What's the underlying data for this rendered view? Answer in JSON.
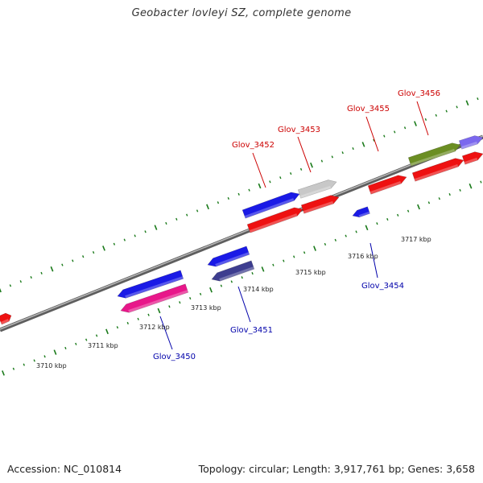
{
  "title": "Geobacter lovleyi SZ, complete genome",
  "footer": {
    "accession": "Accession: NC_010814",
    "summary": "Topology: circular; Length: 3,917,761 bp; Genes: 3,658"
  },
  "colors": {
    "forward_label": "#cc0000",
    "reverse_label": "#0000aa",
    "tick": "#1a7a1a",
    "backbone": "#8a8a8a"
  },
  "kbp_labels": [
    {
      "id": "kbp-3710",
      "text": "3710 kbp"
    },
    {
      "id": "kbp-3711",
      "text": "3711 kbp"
    },
    {
      "id": "kbp-3712",
      "text": "3712 kbp"
    },
    {
      "id": "kbp-3713",
      "text": "3713 kbp"
    },
    {
      "id": "kbp-3714",
      "text": "3714 kbp"
    },
    {
      "id": "kbp-3715",
      "text": "3715 kbp"
    },
    {
      "id": "kbp-3716",
      "text": "3716 kbp"
    },
    {
      "id": "kbp-3717",
      "text": "3717 kbp"
    }
  ],
  "gene_labels": [
    {
      "id": "glov-3450",
      "text": "Glov_3450",
      "strand": "reverse"
    },
    {
      "id": "glov-3451",
      "text": "Glov_3451",
      "strand": "reverse"
    },
    {
      "id": "glov-3452",
      "text": "Glov_3452",
      "strand": "forward"
    },
    {
      "id": "glov-3453",
      "text": "Glov_3453",
      "strand": "forward"
    },
    {
      "id": "glov-3454",
      "text": "Glov_3454",
      "strand": "reverse"
    },
    {
      "id": "glov-3455",
      "text": "Glov_3455",
      "strand": "forward"
    },
    {
      "id": "glov-3456",
      "text": "Glov_3456",
      "strand": "forward"
    }
  ]
}
